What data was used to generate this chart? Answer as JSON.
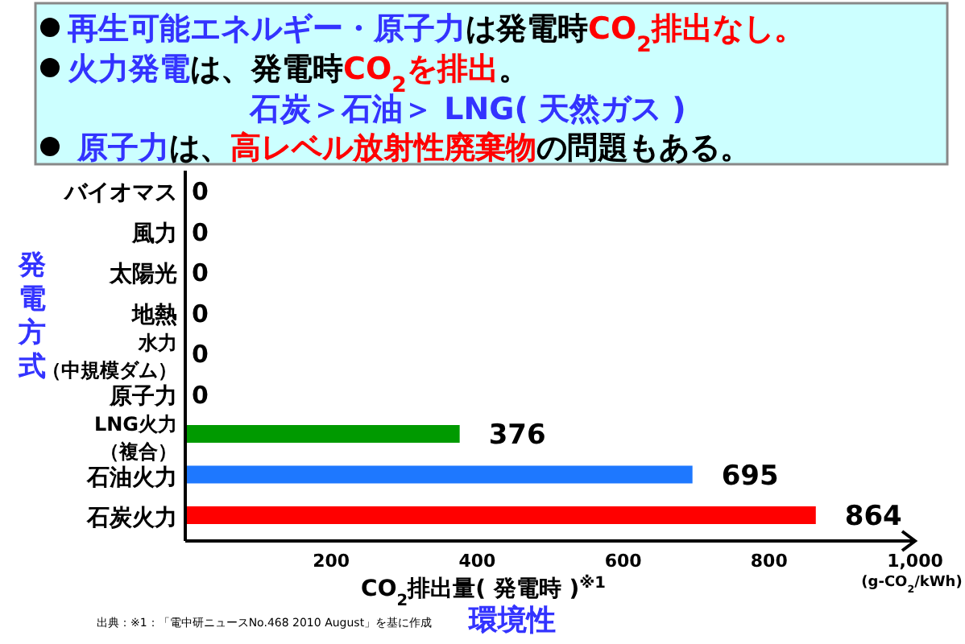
{
  "chart_data": {
    "type": "bar",
    "orientation": "horizontal",
    "categories": [
      "バイオマス",
      "風力",
      "太陽光",
      "地熱",
      "水力（中規模ダム）",
      "原子力",
      "LNG火力（複合）",
      "石油火力",
      "石炭火力"
    ],
    "values": [
      0,
      0,
      0,
      0,
      0,
      0,
      376,
      695,
      864
    ],
    "colors": [
      null,
      null,
      null,
      null,
      null,
      null,
      "#009a00",
      "#1e78ff",
      "#ff0000"
    ],
    "data_labels": true,
    "xlim": [
      0,
      1000
    ],
    "xticks": [
      200,
      400,
      600,
      800,
      {
        "value": 1000,
        "label": "1,000"
      }
    ],
    "xlabel": "CO$_{2}$排出量( 発電時 )$^{※1}$",
    "ylabel": "発電方式",
    "annotations": [
      "再生可能エネルギー・原子力",
      "は発電時",
      "CO$_{2}$排出なし。",
      "火力発電",
      "は、発電時",
      "CO$_{2}$を排出",
      "。",
      "石炭＞石油＞ LNG( 天然ガス )",
      "原子力",
      "は、",
      "高レベル放射性廃棄物",
      "の問題もある。",
      "(g-CO$_{2}$/kWh)",
      "環境性",
      "出典：※1：「電中研ニュースNo.468 2010 August」を基に作成"
    ]
  }
}
